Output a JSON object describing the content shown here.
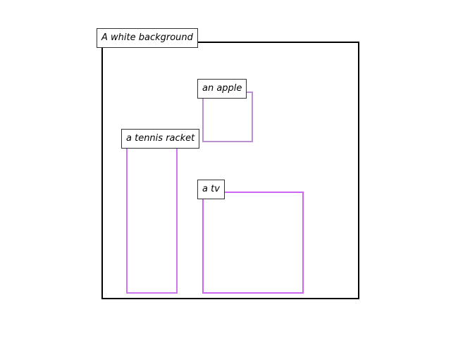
{
  "background_label": "A white background",
  "objects": [
    {
      "id": "apple",
      "label": "an apple",
      "color": "#b88fcf"
    },
    {
      "id": "tennis-racket",
      "label": "a tennis racket",
      "color": "#cc77ee"
    },
    {
      "id": "tv",
      "label": "a tv",
      "color": "#cc66ee"
    }
  ],
  "frame_color": "#000000"
}
